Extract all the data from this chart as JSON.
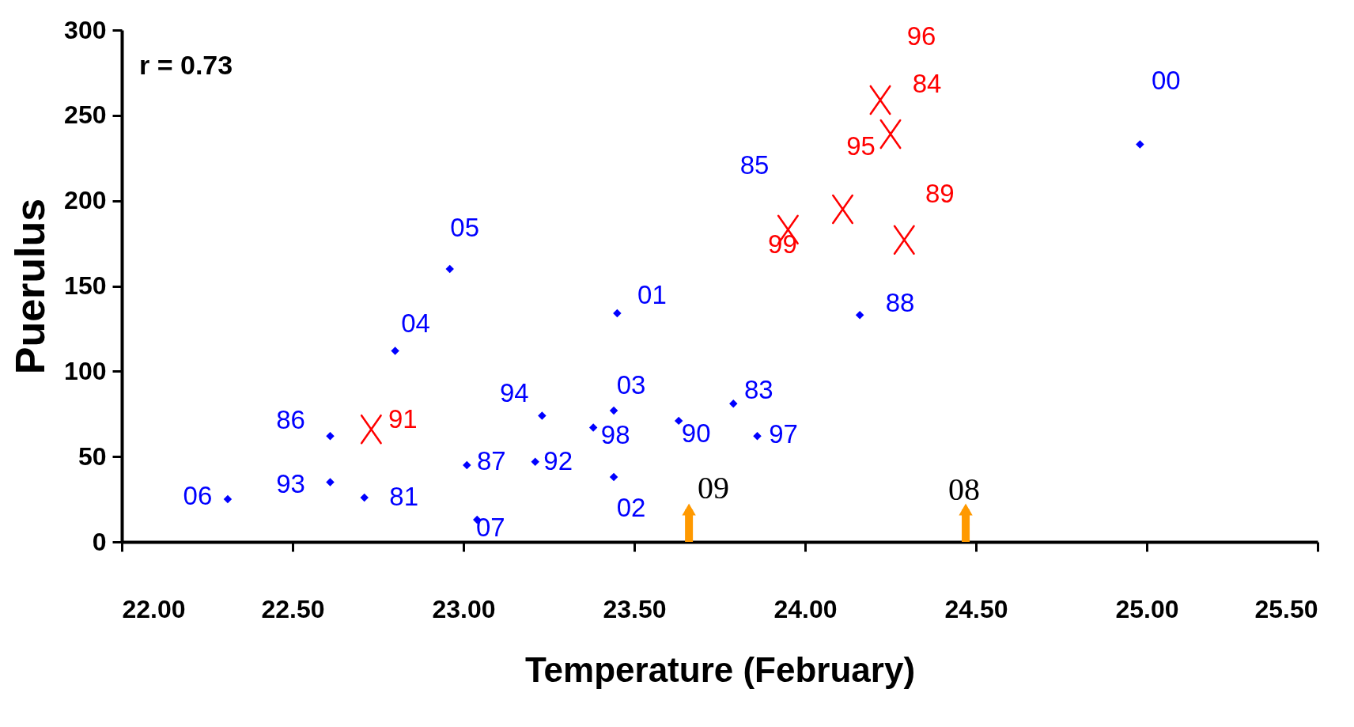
{
  "chart_data": {
    "type": "scatter",
    "xlabel": "Temperature (February)",
    "ylabel": "Puerulus",
    "xlim": [
      22,
      25.5
    ],
    "xticks": [
      {
        "value": 22,
        "label": "22.00"
      },
      {
        "value": 22.5,
        "label": "22.50"
      },
      {
        "value": 23,
        "label": "23.00"
      },
      {
        "value": 23.5,
        "label": "23.50"
      },
      {
        "value": 24,
        "label": "24.00"
      },
      {
        "value": 24.5,
        "label": "24.50"
      },
      {
        "value": 25,
        "label": "25.00"
      },
      {
        "value": 25.5,
        "label": "25.50"
      }
    ],
    "ylim": [
      0,
      300
    ],
    "yticks": [
      0,
      50,
      100,
      150,
      200,
      250,
      300
    ],
    "grid": false,
    "legend": false,
    "series": [
      {
        "color": "#0000ff",
        "marker": "diamond",
        "x": [
          22.31,
          22.61,
          22.61,
          22.71,
          22.8,
          22.96,
          23.01,
          23.04,
          23.23,
          23.21,
          23.38,
          23.44,
          23.44,
          23.45,
          23.63,
          23.79,
          23.86,
          24.16,
          24.98
        ],
        "values": [
          25,
          62,
          35,
          26,
          112,
          160,
          45,
          13,
          74,
          47,
          67,
          77,
          38,
          134,
          71,
          81,
          62,
          133,
          233
        ]
      },
      {
        "color": "#ff0000",
        "marker": "cross",
        "x": [
          22.73,
          23.95,
          24.11,
          24.22,
          24.25,
          24.29
        ],
        "values": [
          66,
          183,
          195,
          259,
          239,
          177
        ]
      },
      {
        "type": "lollipop",
        "color": "#ff9900",
        "marker": "triangle",
        "x": [
          23.66,
          24.47
        ],
        "values": [
          19,
          19
        ]
      }
    ],
    "annotations": [
      "r = 0.73",
      "85",
      {
        "text": "06",
        "x": 22.31,
        "y": 25
      },
      {
        "text": "86",
        "x": 22.61,
        "y": 62
      },
      {
        "text": "93",
        "x": 22.61,
        "y": 35
      },
      {
        "text": "81",
        "x": 22.71,
        "y": 26
      },
      {
        "text": "04",
        "x": 22.8,
        "y": 112
      },
      {
        "text": "05",
        "x": 22.96,
        "y": 160
      },
      {
        "text": "87",
        "x": 23.01,
        "y": 45
      },
      {
        "text": "07",
        "x": 23.04,
        "y": 13
      },
      {
        "text": "94",
        "x": 23.23,
        "y": 74
      },
      {
        "text": "92",
        "x": 23.21,
        "y": 47
      },
      {
        "text": "98",
        "x": 23.38,
        "y": 67
      },
      {
        "text": "03",
        "x": 23.44,
        "y": 77
      },
      {
        "text": "02",
        "x": 23.44,
        "y": 38
      },
      {
        "text": "01",
        "x": 23.45,
        "y": 134
      },
      {
        "text": "90",
        "x": 23.63,
        "y": 71
      },
      {
        "text": "83",
        "x": 23.79,
        "y": 81
      },
      {
        "text": "97",
        "x": 23.86,
        "y": 62
      },
      {
        "text": "88",
        "x": 24.16,
        "y": 133
      },
      {
        "text": "00",
        "x": 24.98,
        "y": 233
      },
      {
        "text": "91",
        "x": 22.73,
        "y": 66
      },
      {
        "text": "99",
        "x": 23.95,
        "y": 183
      },
      {
        "text": "95",
        "x": 24.11,
        "y": 195
      },
      {
        "text": "96",
        "x": 24.22,
        "y": 259
      },
      {
        "text": "84",
        "x": 24.25,
        "y": 239
      },
      {
        "text": "89",
        "x": 24.29,
        "y": 177
      },
      {
        "text": "09",
        "x": 23.66,
        "y": 19
      },
      {
        "text": "08",
        "x": 24.47,
        "y": 19
      }
    ]
  }
}
